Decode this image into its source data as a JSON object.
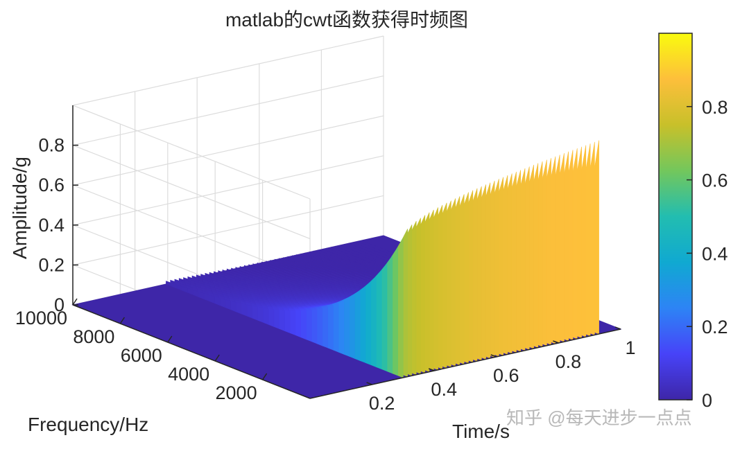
{
  "chart_data": {
    "type": "surface",
    "title": "matlab的cwt函数获得时频图",
    "xlabel": "Time/s",
    "ylabel": "Frequency/Hz",
    "zlabel": "Amplitude/g",
    "x_ticks": [
      "0.2",
      "0.4",
      "0.6",
      "0.8",
      "1"
    ],
    "y_ticks": [
      "2000",
      "4000",
      "6000",
      "8000",
      "10000"
    ],
    "z_ticks": [
      "0",
      "0.2",
      "0.4",
      "0.6",
      "0.8"
    ],
    "xlim": [
      0,
      1
    ],
    "ylim": [
      0,
      10000
    ],
    "zlim": [
      0,
      1
    ],
    "grid": true,
    "colormap": "parula",
    "colorbar": {
      "ticks": [
        "0",
        "0.2",
        "0.4",
        "0.6",
        "0.8"
      ],
      "range": [
        0,
        1
      ],
      "colors": [
        "#3e26a8",
        "#4743f8",
        "#2d84f5",
        "#10a9d1",
        "#22bdb0",
        "#73c75c",
        "#c8c02a",
        "#fdbf3b",
        "#f9fb0e"
      ]
    },
    "surface_description_values": {
      "signal_onset_time": 0.3,
      "signal_end_time": 0.93,
      "peak_amplitude_start": 0.7,
      "peak_amplitude_end": 0.97,
      "frequency_decay": "amplitude highest at low frequency, decays toward ~10000 Hz"
    }
  },
  "watermark": "知乎 @每天进步一点点"
}
